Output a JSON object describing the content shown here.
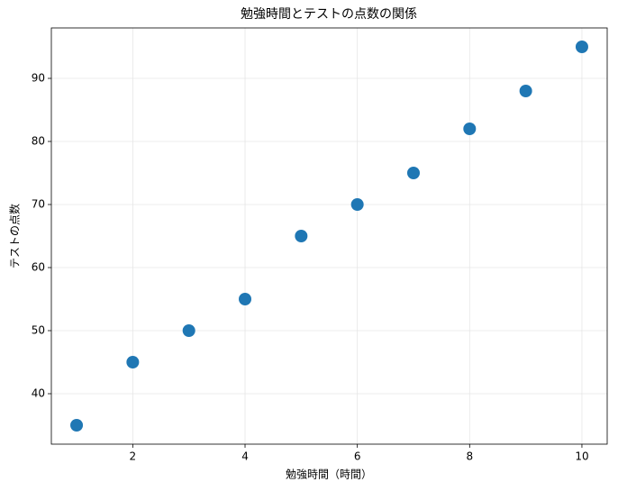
{
  "chart_data": {
    "type": "scatter",
    "title": "勉強時間とテストの点数の関係",
    "x_label": "勉強時間（時間）",
    "y_label": "テストの点数",
    "x": [
      1,
      2,
      3,
      4,
      5,
      6,
      7,
      8,
      9,
      10
    ],
    "values": [
      35,
      45,
      50,
      55,
      65,
      70,
      75,
      82,
      88,
      95
    ],
    "color": "#1f77b4",
    "xlim": [
      0.55,
      10.45
    ],
    "ylim": [
      32,
      98
    ],
    "xticks": [
      2,
      4,
      6,
      8,
      10
    ],
    "yticks": [
      40,
      50,
      60,
      70,
      80,
      90
    ],
    "grid": true
  }
}
